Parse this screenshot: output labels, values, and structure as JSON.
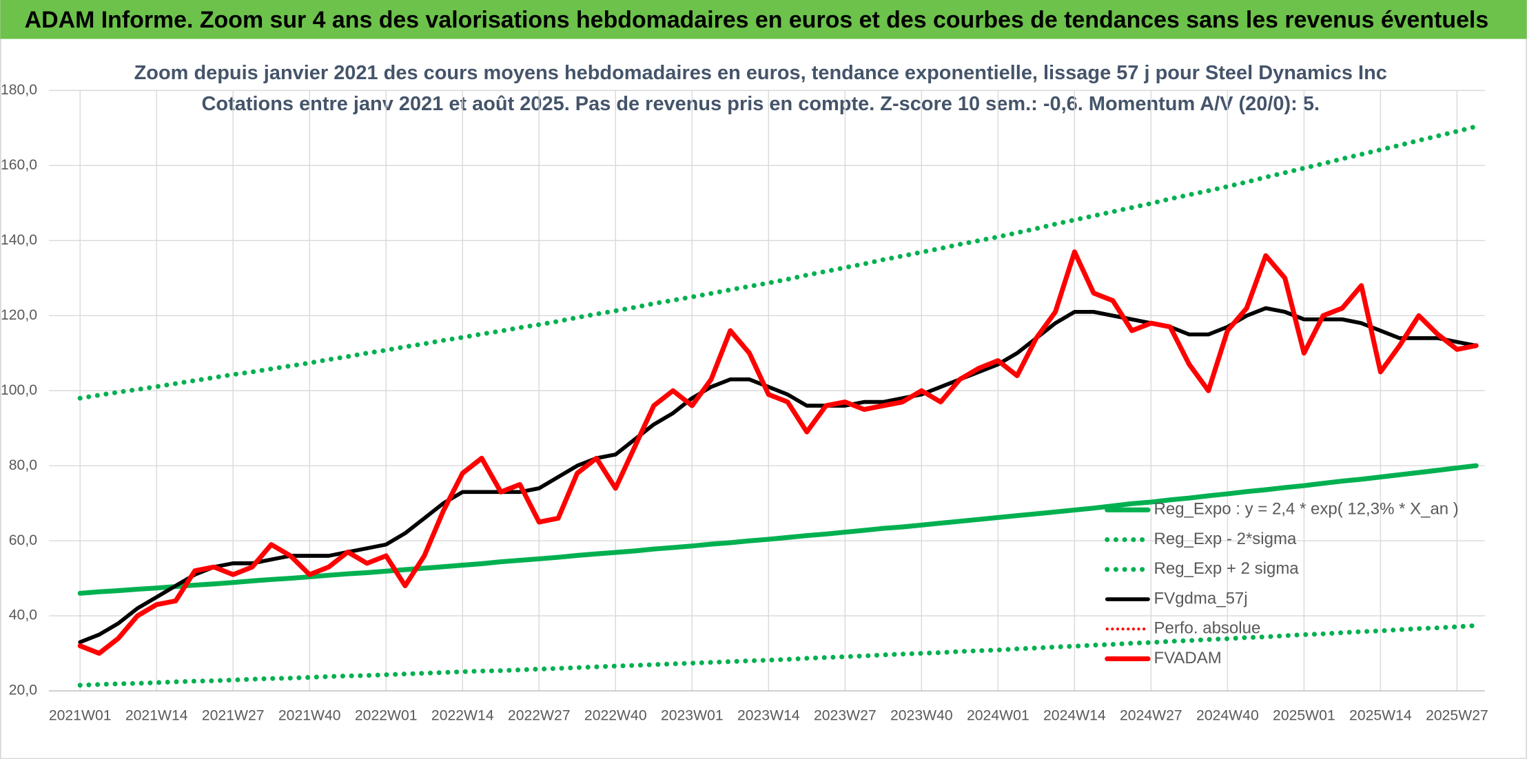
{
  "chart_data": {
    "type": "line",
    "title": "ADAM Informe. Zoom sur 4 ans des valorisations hebdomadaires en euros et des courbes de tendances sans les revenus éventuels",
    "subtitle": [
      "Zoom depuis janvier 2021 des cours moyens hebdomadaires en euros, tendance exponentielle, lissage 57 j pour Steel Dynamics Inc",
      "Cotations entre janv 2021 et août 2025. Pas de revenus pris en compte. Z-score 10 sem.: -0,6. Momentum A/V (20/0): 5."
    ],
    "categories": [
      "2021W01",
      null,
      null,
      null,
      "2021W14",
      null,
      null,
      null,
      "2021W27",
      null,
      null,
      null,
      "2021W40",
      null,
      null,
      null,
      "2022W01",
      null,
      null,
      null,
      "2022W14",
      null,
      null,
      null,
      "2022W27",
      null,
      null,
      null,
      "2022W40",
      null,
      null,
      null,
      "2023W01",
      null,
      null,
      null,
      "2023W14",
      null,
      null,
      null,
      "2023W27",
      null,
      null,
      null,
      "2023W40",
      null,
      null,
      null,
      "2024W01",
      null,
      null,
      null,
      "2024W14",
      null,
      null,
      null,
      "2024W27",
      null,
      null,
      null,
      "2024W40",
      null,
      null,
      null,
      "2025W01",
      null,
      null,
      null,
      "2025W14",
      null,
      null,
      null,
      "2025W27",
      null
    ],
    "ylim": [
      20,
      180
    ],
    "yticks": [
      {
        "value": 20,
        "label": "20,0"
      },
      {
        "value": 40,
        "label": "40,0"
      },
      {
        "value": 60,
        "label": "60,0"
      },
      {
        "value": 80,
        "label": "80,0"
      },
      {
        "value": 100,
        "label": "100,0"
      },
      {
        "value": 120,
        "label": "120,0"
      },
      {
        "value": 140,
        "label": "140,0"
      },
      {
        "value": 160,
        "label": "160,0"
      },
      {
        "value": 180,
        "label": "180,0"
      }
    ],
    "grid": true,
    "legend": "lower right",
    "series": [
      {
        "name": "Reg_Expo : y = 2,4 * exp( 12,3% *  X_an )",
        "color": "#00b050",
        "dash": "solid",
        "width": 5,
        "values": [
          46.0,
          46.4,
          46.7,
          47.1,
          47.4,
          47.8,
          48.2,
          48.5,
          48.9,
          49.3,
          49.7,
          50.0,
          50.4,
          50.8,
          51.2,
          51.5,
          51.9,
          52.3,
          52.7,
          53.1,
          53.5,
          53.9,
          54.4,
          54.8,
          55.2,
          55.6,
          56.1,
          56.5,
          56.9,
          57.3,
          57.8,
          58.2,
          58.6,
          59.1,
          59.5,
          60.0,
          60.4,
          60.9,
          61.4,
          61.8,
          62.3,
          62.8,
          63.3,
          63.7,
          64.2,
          64.7,
          65.2,
          65.7,
          66.2,
          66.7,
          67.2,
          67.7,
          68.2,
          68.7,
          69.3,
          69.9,
          70.3,
          70.9,
          71.4,
          72.0,
          72.5,
          73.1,
          73.6,
          74.2,
          74.7,
          75.3,
          75.9,
          76.4,
          77.0,
          77.6,
          78.2,
          78.8,
          79.4,
          80.0
        ]
      },
      {
        "name": "Reg_Exp - 2*sigma",
        "color": "#00b050",
        "dash": "dotted",
        "width": 5,
        "values": [
          21.5,
          21.7,
          21.9,
          22.0,
          22.2,
          22.4,
          22.6,
          22.7,
          22.9,
          23.1,
          23.3,
          23.4,
          23.6,
          23.8,
          24.0,
          24.1,
          24.3,
          24.5,
          24.7,
          24.9,
          25.1,
          25.3,
          25.4,
          25.6,
          25.8,
          26.0,
          26.2,
          26.4,
          26.6,
          26.8,
          27.0,
          27.2,
          27.4,
          27.6,
          27.8,
          28.0,
          28.2,
          28.4,
          28.7,
          28.9,
          29.1,
          29.3,
          29.6,
          29.8,
          30.0,
          30.2,
          30.5,
          30.7,
          30.9,
          31.2,
          31.4,
          31.7,
          31.9,
          32.2,
          32.4,
          32.7,
          32.9,
          33.2,
          33.4,
          33.7,
          33.9,
          34.2,
          34.4,
          34.7,
          35.0,
          35.2,
          35.5,
          35.8,
          36.0,
          36.3,
          36.6,
          36.8,
          37.1,
          37.4
        ]
      },
      {
        "name": "Reg_Exp + 2 sigma",
        "color": "#00b050",
        "dash": "dotted",
        "width": 5,
        "values": [
          98.0,
          98.8,
          99.6,
          100.3,
          101.1,
          101.9,
          102.7,
          103.5,
          104.3,
          105.0,
          105.8,
          106.6,
          107.4,
          108.3,
          109.1,
          110.0,
          110.8,
          111.7,
          112.5,
          113.4,
          114.2,
          115.1,
          115.9,
          116.8,
          117.6,
          118.5,
          119.5,
          120.4,
          121.3,
          122.2,
          123.2,
          124.1,
          125.0,
          125.9,
          126.9,
          127.8,
          128.7,
          129.7,
          130.8,
          131.8,
          132.8,
          133.8,
          134.9,
          135.9,
          136.9,
          137.9,
          139.0,
          140.0,
          141.0,
          142.1,
          143.2,
          144.4,
          145.5,
          146.6,
          147.7,
          148.8,
          149.9,
          151.1,
          152.2,
          153.3,
          154.4,
          155.6,
          156.9,
          158.1,
          159.3,
          160.5,
          161.8,
          163.0,
          164.2,
          165.4,
          166.7,
          167.9,
          169.1,
          170.4
        ]
      },
      {
        "name": "FVgdma_57j",
        "color": "#000000",
        "dash": "solid",
        "width": 4,
        "values": [
          33,
          35,
          38,
          42,
          45,
          48,
          51,
          53,
          54,
          54,
          55,
          56,
          56,
          56,
          57,
          58,
          59,
          62,
          66,
          70,
          73,
          73,
          73,
          73,
          74,
          77,
          80,
          82,
          83,
          87,
          91,
          94,
          98,
          101,
          103,
          103,
          101,
          99,
          96,
          96,
          96,
          97,
          97,
          98,
          99,
          101,
          103,
          105,
          107,
          110,
          114,
          118,
          121,
          121,
          120,
          119,
          118,
          117,
          115,
          115,
          117,
          120,
          122,
          121,
          119,
          119,
          119,
          118,
          116,
          114,
          114,
          114,
          113,
          112
        ]
      },
      {
        "name": "Perfo. absolue",
        "color": "#ff0000",
        "dash": "dotted",
        "width": 3,
        "values": [
          null,
          null,
          null,
          null,
          null,
          null,
          null,
          null,
          null,
          null,
          null,
          null,
          null,
          null,
          null,
          null,
          null,
          null,
          null,
          null,
          null,
          null,
          null,
          null,
          null,
          null,
          null,
          null,
          null,
          null,
          null,
          null,
          null,
          null,
          null,
          null,
          null,
          null,
          null,
          null,
          null,
          null,
          null,
          null,
          null,
          null,
          null,
          null,
          null,
          null,
          null,
          null,
          null,
          null,
          null,
          null,
          null,
          null,
          null,
          null,
          null,
          null,
          null,
          null,
          null,
          null,
          null,
          null,
          null,
          null,
          null,
          null,
          null,
          null
        ]
      },
      {
        "name": "FVADAM",
        "color": "#ff0000",
        "dash": "solid",
        "width": 5,
        "values": [
          32,
          30,
          34,
          40,
          43,
          44,
          52,
          53,
          51,
          53,
          59,
          56,
          51,
          53,
          57,
          54,
          56,
          48,
          56,
          68,
          78,
          82,
          73,
          75,
          65,
          66,
          78,
          82,
          74,
          85,
          96,
          100,
          96,
          103,
          116,
          110,
          99,
          97,
          89,
          96,
          97,
          95,
          96,
          97,
          100,
          97,
          103,
          106,
          108,
          104,
          114,
          121,
          137,
          126,
          124,
          116,
          118,
          117,
          107,
          100,
          116,
          122,
          136,
          130,
          110,
          120,
          122,
          128,
          105,
          112,
          120,
          115,
          111,
          112
        ]
      }
    ]
  }
}
